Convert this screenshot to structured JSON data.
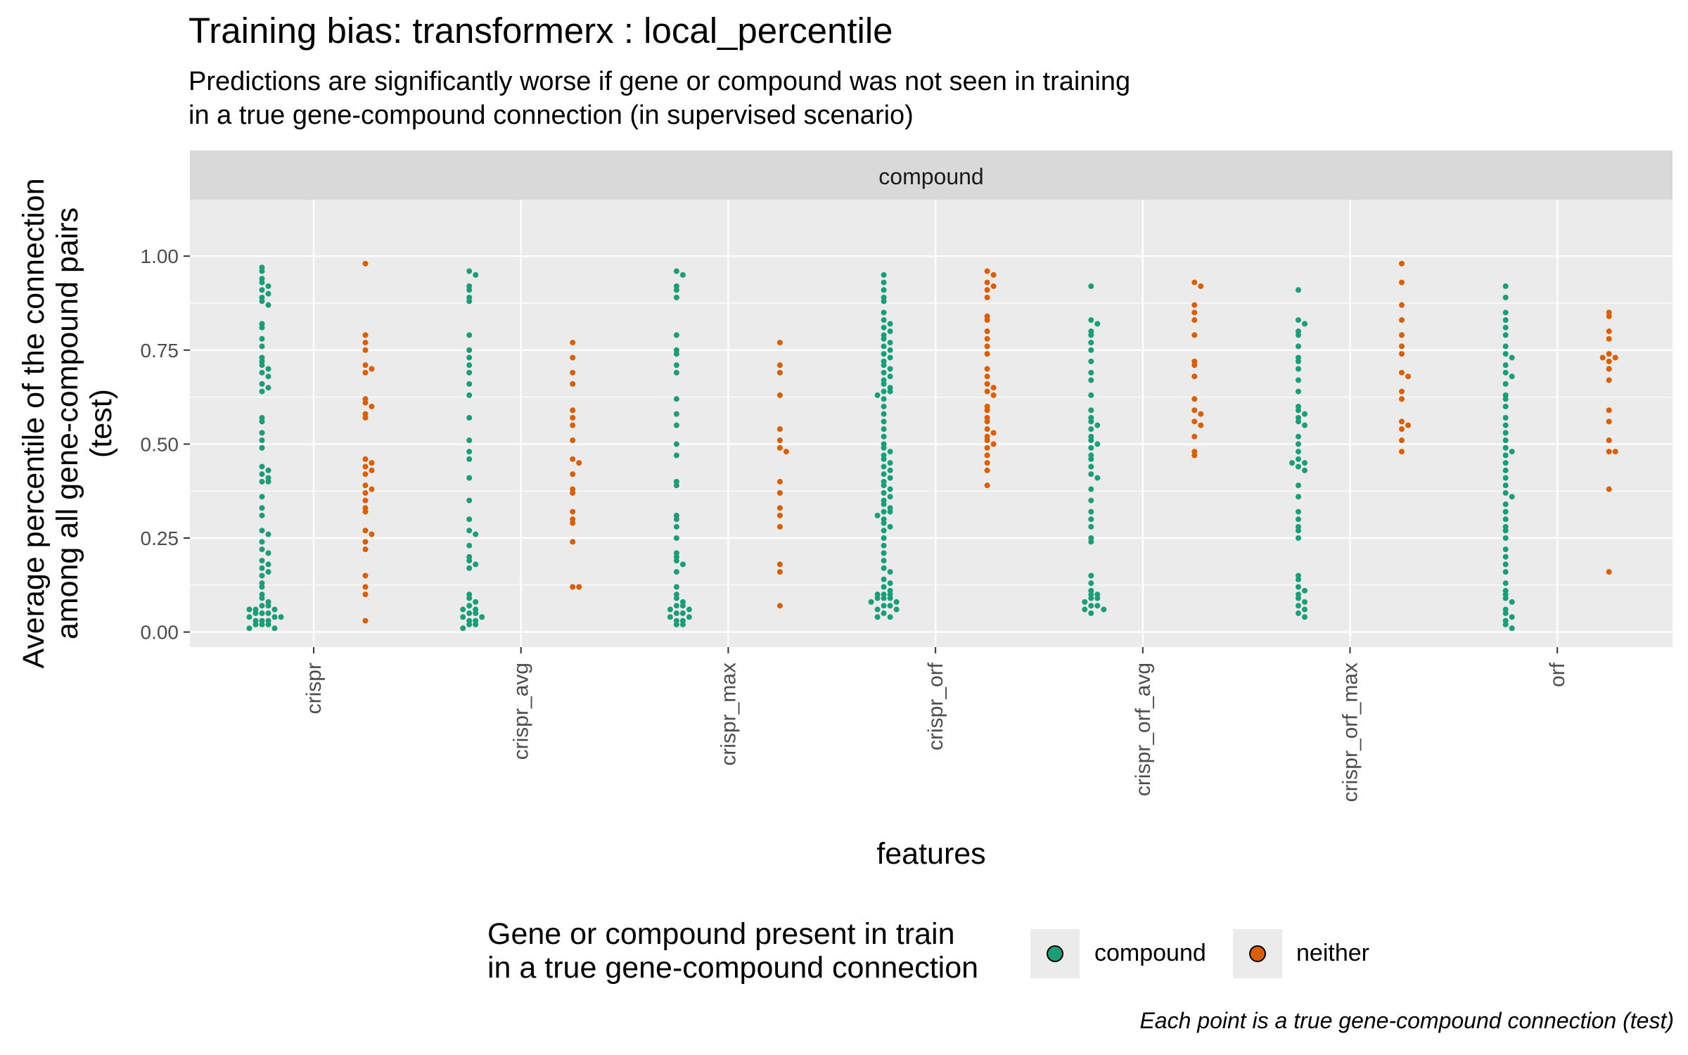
{
  "chart_data": {
    "type": "scatter",
    "title": "Training bias: transformerx : local_percentile",
    "subtitle_lines": [
      "Predictions are significantly worse if gene or compound was not seen in training",
      "in a true gene-compound connection (in supervised scenario)"
    ],
    "facet_label": "compound",
    "xlabel": "features",
    "ylabel_lines": [
      "Average percentile of the connection",
      "among all gene-compound pairs",
      "(test)"
    ],
    "categories": [
      "crispr",
      "crispr_avg",
      "crispr_max",
      "crispr_orf",
      "crispr_orf_avg",
      "crispr_orf_max",
      "orf"
    ],
    "ylim": [
      -0.04,
      1.15
    ],
    "yticks": [
      0,
      0.25,
      0.5,
      0.75,
      1.0
    ],
    "ytick_labels": [
      "0.00",
      "0.25",
      "0.50",
      "0.75",
      "1.00"
    ],
    "grid": true,
    "legend": {
      "title_lines": [
        "Gene or compound present in train",
        "in a true gene-compound connection"
      ],
      "placement": "bottom",
      "entries": [
        {
          "name": "compound",
          "color": "#1b9e77"
        },
        {
          "name": "neither",
          "color": "#d95f02"
        }
      ]
    },
    "caption": "Each point is a true gene-compound connection (test)",
    "series": [
      {
        "name": "compound",
        "color": "#1b9e77",
        "values": [
          [
            0.97,
            0.96,
            0.94,
            0.93,
            0.92,
            0.91,
            0.9,
            0.89,
            0.88,
            0.87,
            0.82,
            0.81,
            0.78,
            0.76,
            0.73,
            0.72,
            0.71,
            0.7,
            0.69,
            0.68,
            0.66,
            0.65,
            0.64,
            0.57,
            0.56,
            0.53,
            0.51,
            0.49,
            0.44,
            0.43,
            0.42,
            0.41,
            0.4,
            0.4,
            0.36,
            0.33,
            0.31,
            0.27,
            0.26,
            0.24,
            0.22,
            0.21,
            0.19,
            0.18,
            0.17,
            0.16,
            0.15,
            0.13,
            0.12,
            0.1,
            0.09,
            0.08,
            0.07,
            0.07,
            0.06,
            0.06,
            0.06,
            0.05,
            0.05,
            0.05,
            0.04,
            0.04,
            0.04,
            0.03,
            0.03,
            0.03,
            0.02,
            0.02,
            0.02,
            0.01,
            0.01
          ],
          [
            0.96,
            0.95,
            0.92,
            0.91,
            0.89,
            0.88,
            0.79,
            0.75,
            0.73,
            0.71,
            0.69,
            0.66,
            0.63,
            0.57,
            0.51,
            0.48,
            0.46,
            0.41,
            0.35,
            0.3,
            0.27,
            0.26,
            0.23,
            0.2,
            0.19,
            0.18,
            0.17,
            0.1,
            0.09,
            0.08,
            0.07,
            0.06,
            0.06,
            0.05,
            0.05,
            0.04,
            0.04,
            0.03,
            0.03,
            0.02,
            0.02,
            0.01
          ],
          [
            0.96,
            0.95,
            0.92,
            0.91,
            0.89,
            0.79,
            0.75,
            0.74,
            0.71,
            0.69,
            0.62,
            0.58,
            0.55,
            0.5,
            0.47,
            0.4,
            0.39,
            0.31,
            0.3,
            0.28,
            0.25,
            0.21,
            0.2,
            0.19,
            0.18,
            0.16,
            0.12,
            0.1,
            0.09,
            0.08,
            0.07,
            0.07,
            0.06,
            0.06,
            0.05,
            0.05,
            0.04,
            0.04,
            0.03,
            0.03,
            0.02,
            0.02
          ],
          [
            0.95,
            0.93,
            0.91,
            0.89,
            0.88,
            0.85,
            0.83,
            0.82,
            0.81,
            0.8,
            0.79,
            0.78,
            0.77,
            0.76,
            0.75,
            0.74,
            0.73,
            0.72,
            0.71,
            0.7,
            0.69,
            0.68,
            0.67,
            0.66,
            0.65,
            0.64,
            0.64,
            0.63,
            0.62,
            0.6,
            0.58,
            0.56,
            0.54,
            0.52,
            0.5,
            0.49,
            0.48,
            0.47,
            0.46,
            0.45,
            0.44,
            0.43,
            0.42,
            0.41,
            0.4,
            0.39,
            0.38,
            0.37,
            0.36,
            0.35,
            0.34,
            0.33,
            0.32,
            0.32,
            0.31,
            0.3,
            0.29,
            0.28,
            0.27,
            0.25,
            0.23,
            0.21,
            0.19,
            0.17,
            0.16,
            0.14,
            0.13,
            0.12,
            0.11,
            0.1,
            0.1,
            0.1,
            0.09,
            0.09,
            0.09,
            0.08,
            0.08,
            0.07,
            0.07,
            0.06,
            0.06,
            0.05,
            0.04,
            0.04
          ],
          [
            0.92,
            0.83,
            0.82,
            0.8,
            0.79,
            0.77,
            0.75,
            0.72,
            0.69,
            0.67,
            0.63,
            0.59,
            0.57,
            0.56,
            0.55,
            0.54,
            0.52,
            0.51,
            0.5,
            0.49,
            0.47,
            0.46,
            0.44,
            0.42,
            0.41,
            0.38,
            0.35,
            0.32,
            0.3,
            0.28,
            0.25,
            0.24,
            0.15,
            0.13,
            0.11,
            0.1,
            0.1,
            0.09,
            0.09,
            0.08,
            0.07,
            0.07,
            0.06,
            0.06,
            0.05
          ],
          [
            0.91,
            0.83,
            0.82,
            0.8,
            0.79,
            0.76,
            0.73,
            0.72,
            0.7,
            0.67,
            0.64,
            0.6,
            0.59,
            0.58,
            0.57,
            0.56,
            0.55,
            0.52,
            0.5,
            0.48,
            0.46,
            0.45,
            0.45,
            0.44,
            0.43,
            0.39,
            0.36,
            0.32,
            0.3,
            0.28,
            0.27,
            0.25,
            0.15,
            0.14,
            0.12,
            0.11,
            0.1,
            0.09,
            0.08,
            0.07,
            0.06,
            0.05,
            0.04
          ],
          [
            0.92,
            0.89,
            0.85,
            0.83,
            0.81,
            0.79,
            0.76,
            0.74,
            0.73,
            0.71,
            0.69,
            0.68,
            0.66,
            0.63,
            0.62,
            0.6,
            0.57,
            0.55,
            0.53,
            0.51,
            0.49,
            0.48,
            0.47,
            0.45,
            0.43,
            0.41,
            0.39,
            0.37,
            0.36,
            0.34,
            0.32,
            0.3,
            0.28,
            0.27,
            0.25,
            0.22,
            0.2,
            0.18,
            0.16,
            0.13,
            0.11,
            0.1,
            0.09,
            0.08,
            0.06,
            0.05,
            0.04,
            0.03,
            0.02,
            0.01
          ]
        ]
      },
      {
        "name": "neither",
        "color": "#d95f02",
        "values": [
          [
            0.98,
            0.79,
            0.77,
            0.75,
            0.71,
            0.7,
            0.69,
            0.62,
            0.61,
            0.6,
            0.58,
            0.57,
            0.46,
            0.45,
            0.44,
            0.43,
            0.42,
            0.39,
            0.38,
            0.37,
            0.35,
            0.33,
            0.32,
            0.27,
            0.26,
            0.24,
            0.22,
            0.15,
            0.12,
            0.1,
            0.03
          ],
          [
            0.77,
            0.73,
            0.69,
            0.66,
            0.59,
            0.57,
            0.55,
            0.51,
            0.46,
            0.45,
            0.42,
            0.38,
            0.37,
            0.32,
            0.3,
            0.29,
            0.24,
            0.12,
            0.12
          ],
          [
            0.77,
            0.71,
            0.69,
            0.63,
            0.54,
            0.51,
            0.49,
            0.48,
            0.4,
            0.37,
            0.33,
            0.31,
            0.28,
            0.18,
            0.16,
            0.07
          ],
          [
            0.96,
            0.95,
            0.93,
            0.92,
            0.91,
            0.89,
            0.84,
            0.83,
            0.8,
            0.78,
            0.76,
            0.74,
            0.7,
            0.68,
            0.66,
            0.65,
            0.64,
            0.63,
            0.6,
            0.59,
            0.57,
            0.56,
            0.54,
            0.53,
            0.52,
            0.51,
            0.5,
            0.49,
            0.47,
            0.45,
            0.43,
            0.39
          ],
          [
            0.93,
            0.92,
            0.87,
            0.85,
            0.83,
            0.79,
            0.72,
            0.71,
            0.68,
            0.62,
            0.59,
            0.58,
            0.56,
            0.55,
            0.52,
            0.48,
            0.47
          ],
          [
            0.98,
            0.93,
            0.87,
            0.83,
            0.79,
            0.76,
            0.74,
            0.69,
            0.68,
            0.64,
            0.62,
            0.56,
            0.55,
            0.54,
            0.51,
            0.48
          ],
          [
            0.85,
            0.84,
            0.8,
            0.78,
            0.74,
            0.73,
            0.73,
            0.72,
            0.7,
            0.67,
            0.59,
            0.56,
            0.51,
            0.48,
            0.48,
            0.38,
            0.16
          ]
        ]
      }
    ]
  }
}
